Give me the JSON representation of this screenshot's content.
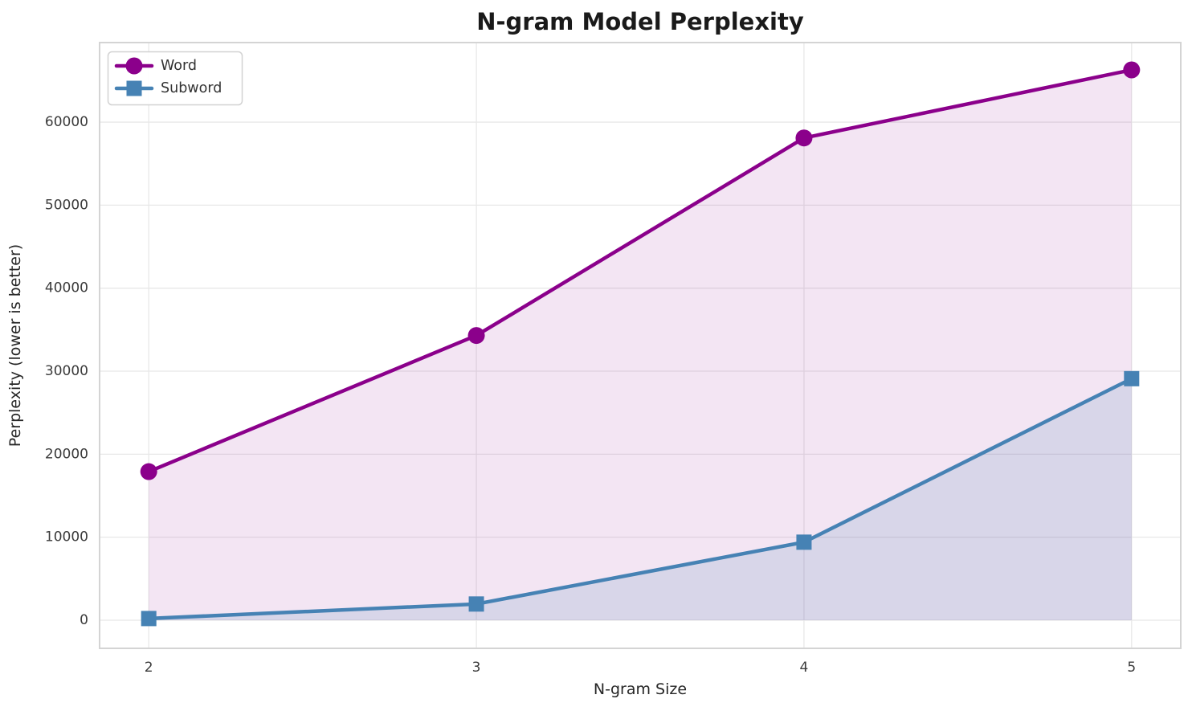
{
  "title": "N-gram Model Perplexity",
  "chart_data": {
    "type": "line",
    "title": "N-gram Model Perplexity",
    "xlabel": "N-gram Size",
    "ylabel": "Perplexity (lower is better)",
    "x": [
      2,
      3,
      4,
      5
    ],
    "series": [
      {
        "name": "Word",
        "values": [
          17900,
          34300,
          58100,
          66300
        ],
        "color": "#8B008B",
        "marker": "circle",
        "fill_to_zero": true,
        "fill_alpha": 0.1
      },
      {
        "name": "Subword",
        "values": [
          200,
          1950,
          9400,
          29100
        ],
        "color": "#4682B4",
        "marker": "square",
        "fill_to_zero": true,
        "fill_alpha": 0.15
      }
    ],
    "xticks": [
      2,
      3,
      4,
      5
    ],
    "yticks": [
      0,
      10000,
      20000,
      30000,
      40000,
      50000,
      60000
    ],
    "xlim": [
      1.85,
      5.15
    ],
    "ylim": [
      -3390,
      69590
    ],
    "grid": true,
    "legend_position": "upper left"
  },
  "colors": {
    "word_series": "#8B008B",
    "subword_series": "#4682B4",
    "grid_line": "#e8e8e8",
    "spine": "#d4d4d4",
    "title_text": "#1a1a1a",
    "tick_text": "#3b3b3b",
    "legend_border": "#d2d2d2",
    "legend_background": "#ffffff"
  }
}
